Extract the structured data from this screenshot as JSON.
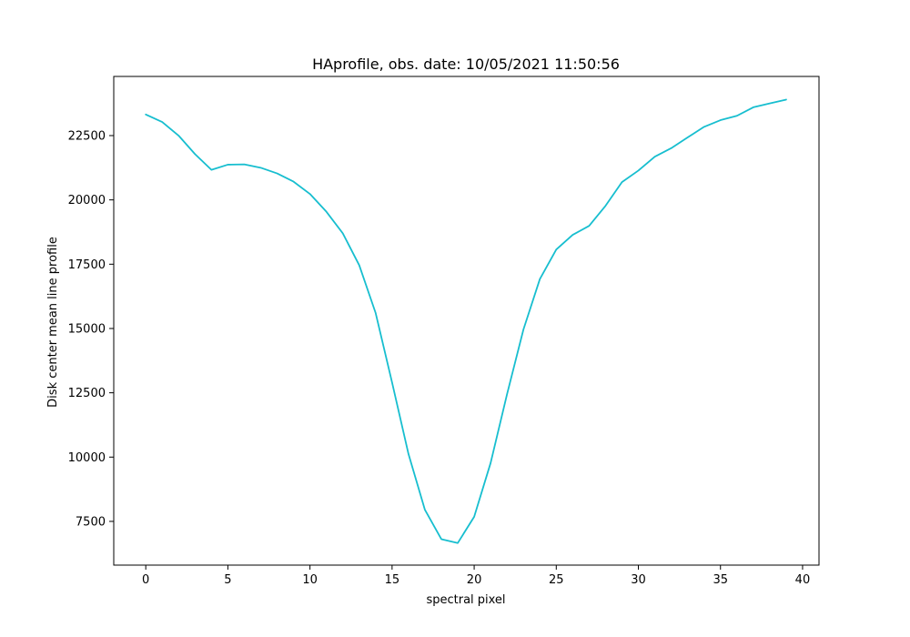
{
  "chart_data": {
    "type": "line",
    "title": "HAprofile, obs. date: 10/05/2021 11:50:56",
    "xlabel": "spectral pixel",
    "ylabel": "Disk center mean line profile",
    "xlim": [
      -1.95,
      41.0
    ],
    "ylim": [
      5800,
      24800
    ],
    "xticks": [
      0,
      5,
      10,
      15,
      20,
      25,
      30,
      35,
      40
    ],
    "yticks": [
      7500,
      10000,
      12500,
      15000,
      17500,
      20000,
      22500
    ],
    "grid": false,
    "legend": "none",
    "line_color": "#17becf",
    "series": [
      {
        "x": [
          0,
          1,
          2,
          3,
          4,
          5,
          6,
          7,
          8,
          9,
          10,
          11,
          12,
          13,
          14,
          15,
          16,
          17,
          18,
          19,
          20,
          21,
          22,
          23,
          24,
          25,
          26,
          27,
          28,
          29,
          30,
          31,
          32,
          33,
          34,
          35,
          36,
          37,
          38,
          39
        ],
        "values": [
          23320,
          23030,
          22500,
          21780,
          21170,
          21370,
          21380,
          21250,
          21030,
          20710,
          20230,
          19540,
          18700,
          17460,
          15600,
          12900,
          10120,
          7950,
          6810,
          6660,
          7680,
          9770,
          12440,
          14960,
          16920,
          18070,
          18640,
          18990,
          19770,
          20690,
          21140,
          21680,
          22010,
          22430,
          22840,
          23100,
          23270,
          23600,
          23750,
          23900
        ]
      }
    ]
  }
}
